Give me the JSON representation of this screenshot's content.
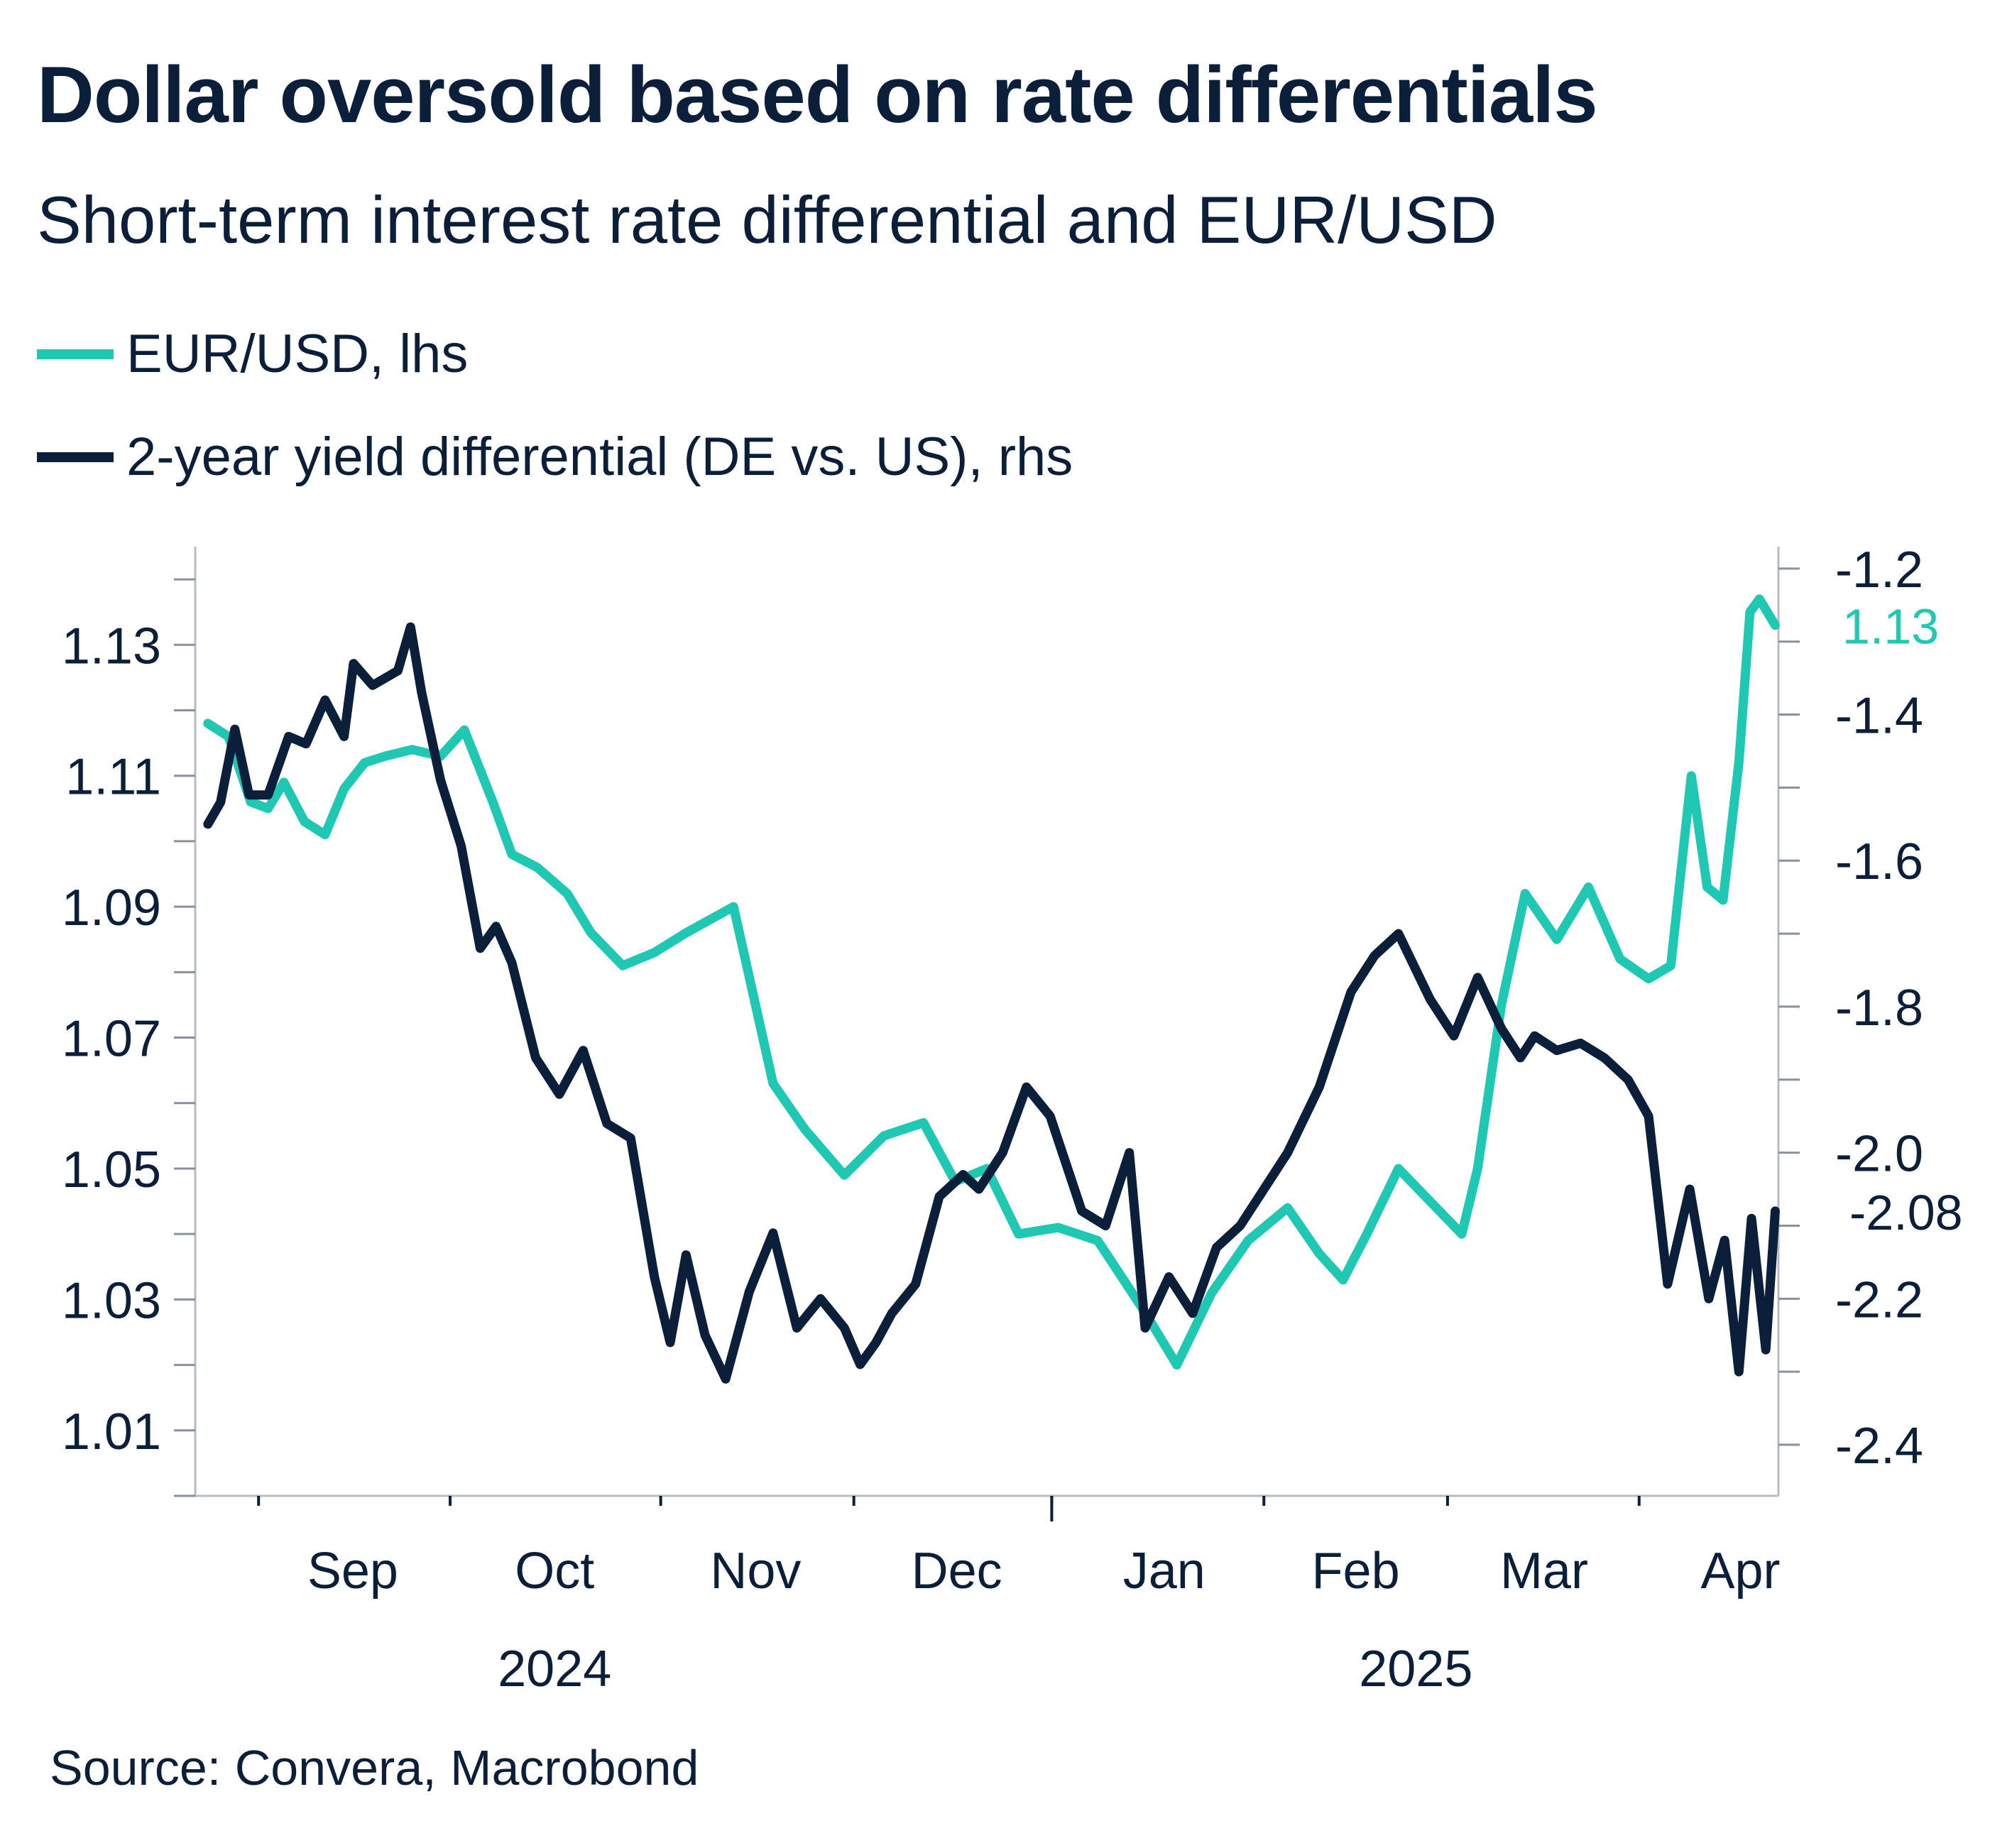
{
  "title": "Dollar oversold based on rate differentials",
  "subtitle": "Short-term interest rate differential and EUR/USD",
  "source": "Source: Convera, Macrobond",
  "colors": {
    "eurusd": "#1fc8b3",
    "differential": "#0b1f3a",
    "axis": "#b7bcc4",
    "text": "#0b1f3a"
  },
  "legend": [
    {
      "label": "EUR/USD, lhs",
      "color": "#1fc8b3"
    },
    {
      "label": "2-year yield differential (DE vs. US), rhs",
      "color": "#0b1f3a"
    }
  ],
  "chart_data": {
    "type": "line",
    "x_range": [
      0,
      1
    ],
    "left_axis": {
      "range": [
        1.0,
        1.145
      ],
      "ticks": [
        1.01,
        1.03,
        1.05,
        1.07,
        1.09,
        1.11,
        1.13
      ],
      "minor_step": 0.01
    },
    "right_axis": {
      "range": [
        -2.47,
        -1.17
      ],
      "ticks": [
        -2.4,
        -2.2,
        -2.0,
        -1.8,
        -1.6,
        -1.4,
        -1.2
      ],
      "minor_step": 0.1,
      "tick_labels": [
        "-2.4",
        "-2.2",
        "-2.0",
        "-1.8",
        "-1.6",
        "-1.4",
        "-1.2"
      ]
    },
    "x_month_labels": [
      {
        "label": "Sep",
        "pos": 0.0995
      },
      {
        "label": "Oct",
        "pos": 0.227
      },
      {
        "label": "Nov",
        "pos": 0.354
      },
      {
        "label": "Dec",
        "pos": 0.481
      },
      {
        "label": "Jan",
        "pos": 0.612
      },
      {
        "label": "Feb",
        "pos": 0.733
      },
      {
        "label": "Mar",
        "pos": 0.852
      },
      {
        "label": "Apr",
        "pos": 0.976
      }
    ],
    "x_ticks": [
      0.04,
      0.161,
      0.294,
      0.416,
      0.541,
      0.675,
      0.791,
      0.912
    ],
    "x_major_tick": 0.541,
    "year_labels": [
      {
        "label": "2024",
        "pos": 0.227
      },
      {
        "label": "2025",
        "pos": 0.771
      }
    ],
    "end_labels": {
      "eurusd": "1.13",
      "differential": "-2.08"
    },
    "series": [
      {
        "name": "EUR/USD, lhs",
        "axis": "left",
        "x": [
          0.008,
          0.021,
          0.035,
          0.046,
          0.056,
          0.069,
          0.082,
          0.094,
          0.107,
          0.12,
          0.137,
          0.155,
          0.17,
          0.188,
          0.2,
          0.216,
          0.235,
          0.25,
          0.27,
          0.29,
          0.31,
          0.34,
          0.365,
          0.385,
          0.41,
          0.435,
          0.46,
          0.48,
          0.5,
          0.52,
          0.545,
          0.57,
          0.6,
          0.62,
          0.642,
          0.665,
          0.69,
          0.71,
          0.725,
          0.74,
          0.76,
          0.78,
          0.8,
          0.81,
          0.825,
          0.84,
          0.86,
          0.88,
          0.9,
          0.918,
          0.932,
          0.945,
          0.955,
          0.965,
          0.975,
          0.982,
          0.988,
          0.998
        ],
        "values": [
          1.118,
          1.116,
          1.106,
          1.105,
          1.109,
          1.103,
          1.101,
          1.108,
          1.112,
          1.113,
          1.114,
          1.113,
          1.117,
          1.106,
          1.098,
          1.096,
          1.092,
          1.086,
          1.081,
          1.083,
          1.086,
          1.09,
          1.063,
          1.056,
          1.049,
          1.055,
          1.057,
          1.048,
          1.05,
          1.04,
          1.041,
          1.039,
          1.028,
          1.02,
          1.031,
          1.039,
          1.044,
          1.037,
          1.033,
          1.04,
          1.05,
          1.045,
          1.04,
          1.05,
          1.075,
          1.092,
          1.085,
          1.093,
          1.082,
          1.079,
          1.081,
          1.11,
          1.093,
          1.091,
          1.112,
          1.135,
          1.137,
          1.133
        ]
      },
      {
        "name": "2-year yield differential (DE vs. US), rhs",
        "axis": "right",
        "x": [
          0.008,
          0.016,
          0.025,
          0.034,
          0.046,
          0.059,
          0.07,
          0.082,
          0.094,
          0.1,
          0.112,
          0.128,
          0.136,
          0.143,
          0.155,
          0.168,
          0.18,
          0.19,
          0.2,
          0.215,
          0.23,
          0.245,
          0.26,
          0.275,
          0.29,
          0.3,
          0.31,
          0.322,
          0.335,
          0.35,
          0.365,
          0.38,
          0.395,
          0.41,
          0.42,
          0.43,
          0.44,
          0.455,
          0.47,
          0.485,
          0.495,
          0.51,
          0.525,
          0.54,
          0.56,
          0.575,
          0.59,
          0.6,
          0.615,
          0.63,
          0.645,
          0.66,
          0.675,
          0.69,
          0.71,
          0.73,
          0.745,
          0.76,
          0.78,
          0.795,
          0.81,
          0.825,
          0.837,
          0.846,
          0.86,
          0.875,
          0.89,
          0.905,
          0.918,
          0.93,
          0.944,
          0.956,
          0.966,
          0.975,
          0.983,
          0.992,
          0.998
        ],
        "values": [
          -1.55,
          -1.52,
          -1.42,
          -1.51,
          -1.51,
          -1.43,
          -1.44,
          -1.38,
          -1.43,
          -1.33,
          -1.36,
          -1.34,
          -1.28,
          -1.37,
          -1.49,
          -1.58,
          -1.72,
          -1.69,
          -1.74,
          -1.87,
          -1.92,
          -1.86,
          -1.96,
          -1.98,
          -2.17,
          -2.26,
          -2.14,
          -2.25,
          -2.31,
          -2.19,
          -2.11,
          -2.24,
          -2.2,
          -2.24,
          -2.29,
          -2.26,
          -2.22,
          -2.18,
          -2.06,
          -2.03,
          -2.05,
          -2.0,
          -1.91,
          -1.95,
          -2.08,
          -2.1,
          -2.0,
          -2.24,
          -2.17,
          -2.22,
          -2.13,
          -2.1,
          -2.05,
          -2.0,
          -1.91,
          -1.78,
          -1.73,
          -1.7,
          -1.79,
          -1.84,
          -1.76,
          -1.83,
          -1.87,
          -1.84,
          -1.86,
          -1.85,
          -1.87,
          -1.9,
          -1.95,
          -2.18,
          -2.05,
          -2.2,
          -2.12,
          -2.3,
          -2.09,
          -2.27,
          -2.08
        ]
      }
    ]
  }
}
